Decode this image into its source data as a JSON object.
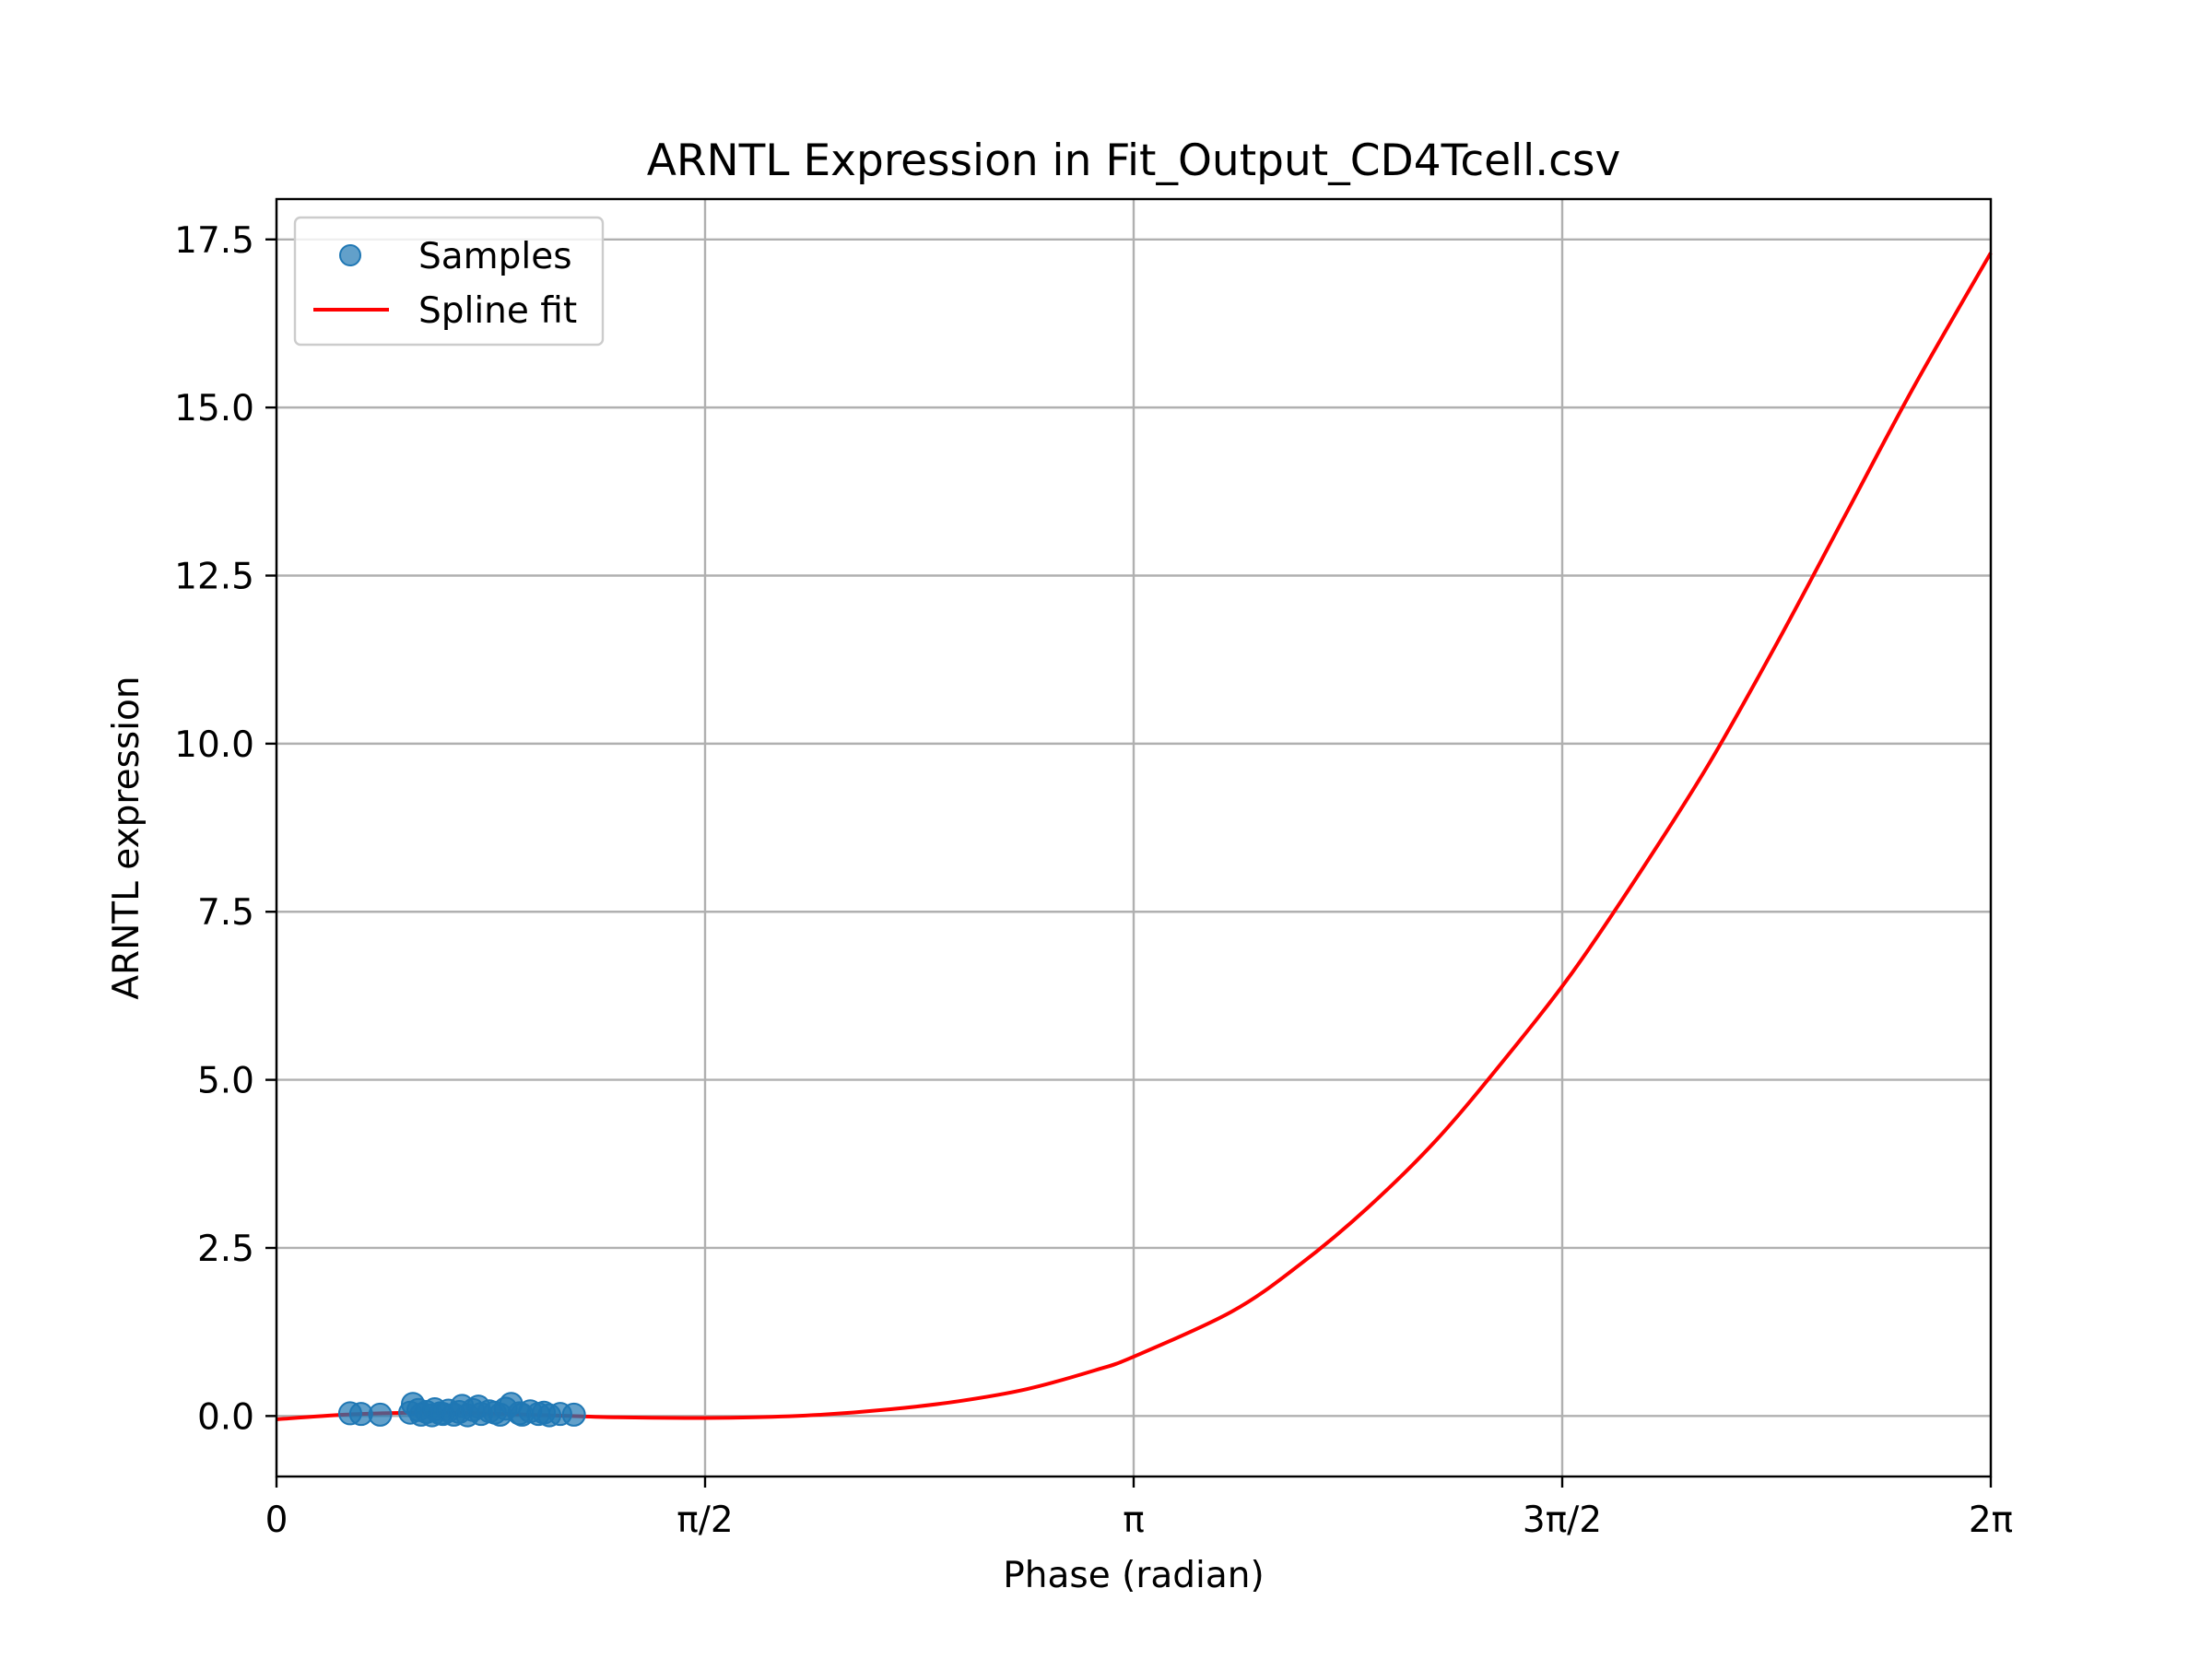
{
  "chart_data": {
    "type": "scatter",
    "title": "ARNTL Expression in Fit_Output_CD4Tcell.csv",
    "xlabel": "Phase (radian)",
    "ylabel": "ARNTL expression",
    "xlim": [
      0,
      6.283185307
    ],
    "ylim": [
      -0.9,
      18.1
    ],
    "grid": true,
    "legend_position": "top-left",
    "x_ticks": [
      {
        "value": 0,
        "label": "0"
      },
      {
        "value": 1.570796327,
        "label": "π/2"
      },
      {
        "value": 3.141592654,
        "label": "π"
      },
      {
        "value": 4.71238898,
        "label": "3π/2"
      },
      {
        "value": 6.283185307,
        "label": "2π"
      }
    ],
    "y_ticks": [
      {
        "value": 0.0,
        "label": "0.0"
      },
      {
        "value": 2.5,
        "label": "2.5"
      },
      {
        "value": 5.0,
        "label": "5.0"
      },
      {
        "value": 7.5,
        "label": "7.5"
      },
      {
        "value": 10.0,
        "label": "10.0"
      },
      {
        "value": 12.5,
        "label": "12.5"
      },
      {
        "value": 15.0,
        "label": "15.0"
      },
      {
        "value": 17.5,
        "label": "17.5"
      }
    ],
    "series": [
      {
        "name": "Samples",
        "kind": "scatter",
        "color": "#1f77b4",
        "x": [
          0.27,
          0.31,
          0.38,
          0.49,
          0.5,
          0.52,
          0.53,
          0.55,
          0.57,
          0.58,
          0.6,
          0.61,
          0.63,
          0.65,
          0.67,
          0.68,
          0.7,
          0.72,
          0.74,
          0.75,
          0.78,
          0.8,
          0.82,
          0.84,
          0.86,
          0.89,
          0.9,
          0.93,
          0.96,
          0.98,
          1.0,
          1.04,
          1.09
        ],
        "y": [
          0.04,
          0.03,
          0.02,
          0.05,
          0.18,
          0.09,
          0.02,
          0.06,
          0.01,
          0.1,
          0.04,
          0.03,
          0.08,
          0.02,
          0.06,
          0.15,
          0.01,
          0.09,
          0.14,
          0.03,
          0.07,
          0.05,
          0.02,
          0.11,
          0.18,
          0.04,
          0.02,
          0.07,
          0.03,
          0.05,
          0.01,
          0.03,
          0.02
        ]
      },
      {
        "name": "Spline fit",
        "kind": "line",
        "color": "#ff0000",
        "x": [
          0.0,
          0.25,
          0.5,
          0.75,
          1.0,
          1.25,
          1.5,
          1.75,
          2.0,
          2.25,
          2.5,
          2.75,
          3.0,
          3.14,
          3.5,
          3.75,
          4.0,
          4.25,
          4.5,
          4.75,
          5.0,
          5.25,
          5.5,
          5.75,
          6.0,
          6.283
        ],
        "y": [
          -0.05,
          0.02,
          0.05,
          0.04,
          0.01,
          -0.02,
          -0.03,
          -0.02,
          0.02,
          0.1,
          0.22,
          0.4,
          0.68,
          0.88,
          1.55,
          2.25,
          3.1,
          4.1,
          5.3,
          6.6,
          8.1,
          9.7,
          11.5,
          13.4,
          15.3,
          17.3
        ]
      }
    ]
  }
}
